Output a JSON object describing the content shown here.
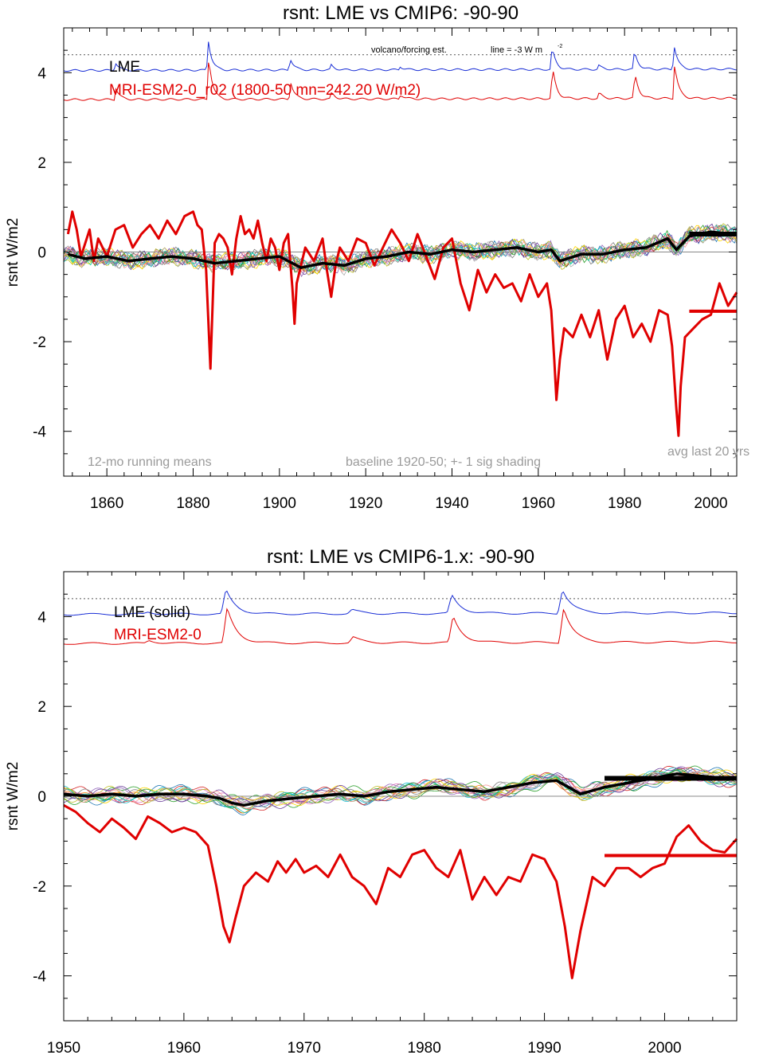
{
  "colors": {
    "lme": "#000000",
    "model": "#e00000",
    "volcano_lme": "#1a2fd6",
    "volcano_model": "#e00000",
    "zero_line": "#888888",
    "note": "#9a9a9a",
    "members": [
      "#1f77b4",
      "#ff7f0e",
      "#2ca02c",
      "#d62728",
      "#9467bd",
      "#8c564b",
      "#e377c2",
      "#7f7f7f",
      "#bcbd22",
      "#17becf",
      "#00cc99",
      "#ffd700",
      "#aaaaaa",
      "#6a3d9a",
      "#33a02c",
      "#fb9a99"
    ]
  },
  "chart_data": [
    {
      "type": "line",
      "title": "rsnt: LME vs CMIP6: -90-90",
      "ylabel": "rsnt W/m2",
      "xlabel": "",
      "xlim": [
        1850,
        2006
      ],
      "ylim": [
        -5,
        5
      ],
      "xticks": [
        1860,
        1880,
        1900,
        1920,
        1940,
        1960,
        1980,
        2000
      ],
      "yticks": [
        -4,
        -2,
        0,
        2,
        4
      ],
      "legend": [
        "LME",
        "MRI-ESM2-0_r02 (1800-50 mn=242.20 W/m2)"
      ],
      "notes": {
        "left": "12-mo running means",
        "mid": "baseline 1920-50; +- 1 sig shading",
        "right": "avg last 20 yrs",
        "volcano": "volcano/forcing est.",
        "line": "line = -3 W m",
        "line_sup": "-2"
      },
      "volcano_ref_level": 4.4,
      "series": [
        {
          "name": "MRI-ESM2-0_r02",
          "x": [
            1851,
            1852,
            1853,
            1854,
            1855,
            1856,
            1857,
            1858,
            1859,
            1860,
            1862,
            1864,
            1866,
            1868,
            1870,
            1872,
            1874,
            1876,
            1878,
            1880,
            1881,
            1882,
            1883,
            1883.5,
            1884,
            1884.5,
            1885,
            1886,
            1887,
            1888,
            1889,
            1890,
            1891,
            1892,
            1893,
            1894,
            1895,
            1896,
            1897,
            1898,
            1899,
            1900,
            1901,
            1902,
            1903,
            1903.5,
            1904,
            1905,
            1906,
            1908,
            1910,
            1911,
            1912,
            1913,
            1914,
            1916,
            1918,
            1920,
            1922,
            1924,
            1926,
            1928,
            1930,
            1932,
            1934,
            1936,
            1938,
            1940,
            1942,
            1944,
            1946,
            1948,
            1950,
            1952,
            1954,
            1956,
            1958,
            1960,
            1962,
            1963,
            1963.7,
            1964.2,
            1965,
            1966,
            1968,
            1970,
            1972,
            1974,
            1976,
            1978,
            1980,
            1982,
            1984,
            1986,
            1988,
            1990,
            1991,
            1992,
            1992.5,
            1993,
            1994,
            1996,
            1998,
            2000,
            2002,
            2004,
            2006
          ],
          "y": [
            0.4,
            0.9,
            0.5,
            -0.1,
            0.2,
            0.5,
            -0.2,
            0.3,
            0.1,
            -0.1,
            0.5,
            0.6,
            0.1,
            0.4,
            0.6,
            0.3,
            0.7,
            0.4,
            0.8,
            0.9,
            0.6,
            0.5,
            -0.4,
            -1.5,
            -2.6,
            -1.2,
            0.2,
            0.4,
            0.3,
            0.1,
            -0.5,
            0.3,
            0.8,
            0.4,
            0.5,
            0.3,
            0.7,
            0.2,
            -0.2,
            0.3,
            0.1,
            -0.4,
            0.2,
            0.4,
            -0.8,
            -1.6,
            -0.7,
            -0.3,
            0.1,
            -0.2,
            0.3,
            -0.4,
            -1.0,
            -0.3,
            0.1,
            -0.2,
            0.3,
            0.2,
            -0.3,
            0.1,
            0.5,
            0.2,
            -0.2,
            0.4,
            -0.1,
            -0.6,
            0.1,
            0.3,
            -0.7,
            -1.3,
            -0.4,
            -0.9,
            -0.5,
            -0.8,
            -0.7,
            -1.1,
            -0.5,
            -1.0,
            -0.7,
            -1.3,
            -2.4,
            -3.3,
            -2.4,
            -1.7,
            -1.9,
            -1.4,
            -1.9,
            -1.3,
            -2.4,
            -1.5,
            -1.2,
            -1.9,
            -1.6,
            -2.0,
            -1.3,
            -1.4,
            -2.1,
            -3.5,
            -4.1,
            -3.0,
            -1.9,
            -1.7,
            -1.5,
            -1.4,
            -0.7,
            -1.2,
            -0.9
          ],
          "color": "#e00000"
        },
        {
          "name": "LME",
          "x": [
            1851,
            1855,
            1860,
            1865,
            1870,
            1875,
            1880,
            1885,
            1890,
            1895,
            1900,
            1905,
            1910,
            1915,
            1920,
            1925,
            1930,
            1935,
            1940,
            1945,
            1950,
            1955,
            1960,
            1963,
            1965,
            1970,
            1975,
            1980,
            1985,
            1990,
            1992,
            1995,
            2000,
            2005
          ],
          "y": [
            -0.05,
            -0.15,
            -0.1,
            -0.2,
            -0.15,
            -0.1,
            -0.15,
            -0.25,
            -0.2,
            -0.15,
            -0.1,
            -0.35,
            -0.25,
            -0.3,
            -0.15,
            -0.1,
            0.0,
            -0.05,
            0.05,
            0.0,
            0.05,
            0.1,
            0.0,
            0.05,
            -0.2,
            -0.05,
            -0.05,
            0.05,
            0.1,
            0.3,
            0.05,
            0.35,
            0.45,
            0.4
          ],
          "color": "#000000"
        }
      ],
      "avg_last_20": [
        {
          "name": "MRI-ESM2-0_r02",
          "value": -1.32
        },
        {
          "name": "LME",
          "value": 0.4
        }
      ]
    },
    {
      "type": "line",
      "title": "rsnt: LME vs CMIP6-1.x: -90-90",
      "ylabel": "rsnt W/m2",
      "xlabel": "",
      "xlim": [
        1950,
        2006
      ],
      "ylim": [
        -5,
        5
      ],
      "xticks": [
        1950,
        1960,
        1970,
        1980,
        1990,
        2000
      ],
      "yticks": [
        -4,
        -2,
        0,
        2,
        4
      ],
      "legend": [
        "LME (solid)",
        "MRI-ESM2-0"
      ],
      "volcano_ref_level": 4.4,
      "series": [
        {
          "name": "MRI-ESM2-0",
          "x": [
            1950,
            1951,
            1952,
            1953,
            1954,
            1955,
            1956,
            1957,
            1958,
            1959,
            1960,
            1961,
            1962,
            1962.7,
            1963.3,
            1963.8,
            1964.3,
            1965,
            1966,
            1967,
            1967.8,
            1968.5,
            1969.3,
            1970,
            1971,
            1972,
            1973,
            1974,
            1975,
            1976,
            1977,
            1978,
            1979,
            1980,
            1981,
            1982,
            1983,
            1984,
            1985,
            1986,
            1987,
            1988,
            1989,
            1990,
            1991,
            1991.7,
            1992.3,
            1993,
            1994,
            1995,
            1996,
            1997,
            1998,
            1999,
            2000,
            2001,
            2002,
            2003,
            2004,
            2005,
            2006
          ],
          "y": [
            -0.2,
            -0.35,
            -0.6,
            -0.8,
            -0.5,
            -0.7,
            -0.95,
            -0.45,
            -0.6,
            -0.8,
            -0.7,
            -0.8,
            -1.1,
            -2.0,
            -2.9,
            -3.25,
            -2.7,
            -2.0,
            -1.7,
            -1.9,
            -1.45,
            -1.7,
            -1.4,
            -1.7,
            -1.55,
            -1.8,
            -1.3,
            -1.8,
            -2.0,
            -2.4,
            -1.6,
            -1.8,
            -1.3,
            -1.2,
            -1.6,
            -1.8,
            -1.2,
            -2.3,
            -1.8,
            -2.2,
            -1.8,
            -1.9,
            -1.3,
            -1.4,
            -1.9,
            -2.9,
            -4.05,
            -3.0,
            -1.8,
            -2.0,
            -1.6,
            -1.6,
            -1.8,
            -1.6,
            -1.5,
            -0.9,
            -0.65,
            -1.0,
            -1.2,
            -1.25,
            -0.95
          ],
          "color": "#e00000"
        },
        {
          "name": "LME",
          "x": [
            1950,
            1952,
            1954,
            1956,
            1958,
            1960,
            1962,
            1963,
            1964,
            1965,
            1967,
            1969,
            1971,
            1973,
            1975,
            1977,
            1979,
            1981,
            1983,
            1985,
            1987,
            1989,
            1991,
            1992,
            1993,
            1995,
            1997,
            1999,
            2001,
            2003,
            2005
          ],
          "y": [
            0.05,
            0.0,
            0.05,
            0.0,
            0.05,
            0.05,
            0.0,
            -0.05,
            -0.15,
            -0.2,
            -0.1,
            -0.05,
            0.0,
            0.05,
            0.0,
            0.1,
            0.15,
            0.2,
            0.15,
            0.1,
            0.2,
            0.3,
            0.35,
            0.2,
            0.05,
            0.2,
            0.3,
            0.4,
            0.5,
            0.45,
            0.4
          ],
          "color": "#000000"
        }
      ],
      "avg_last_20": [
        {
          "name": "MRI-ESM2-0",
          "value": -1.32
        },
        {
          "name": "LME",
          "value": 0.4
        }
      ]
    }
  ]
}
